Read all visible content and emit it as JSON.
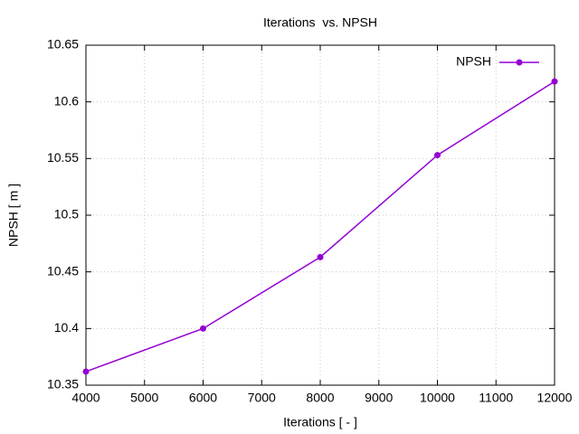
{
  "chart_data": {
    "type": "line",
    "title": "Iterations  vs. NPSH",
    "x_label": "Iterations [ - ]",
    "y_label": "NPSH [ m ]",
    "x": [
      4000,
      6000,
      8000,
      10000,
      12000
    ],
    "series": [
      {
        "name": "NPSH",
        "color": "#9400d3",
        "values": [
          10.362,
          10.4,
          10.463,
          10.553,
          10.618
        ]
      }
    ],
    "xlim": [
      4000,
      12000
    ],
    "xticks": [
      4000,
      5000,
      6000,
      7000,
      8000,
      9000,
      10000,
      11000,
      12000
    ],
    "ylim": [
      10.35,
      10.65
    ],
    "yticks": [
      10.35,
      10.4,
      10.45,
      10.5,
      10.55,
      10.6,
      10.65
    ],
    "grid": true,
    "legend": "top-right"
  }
}
